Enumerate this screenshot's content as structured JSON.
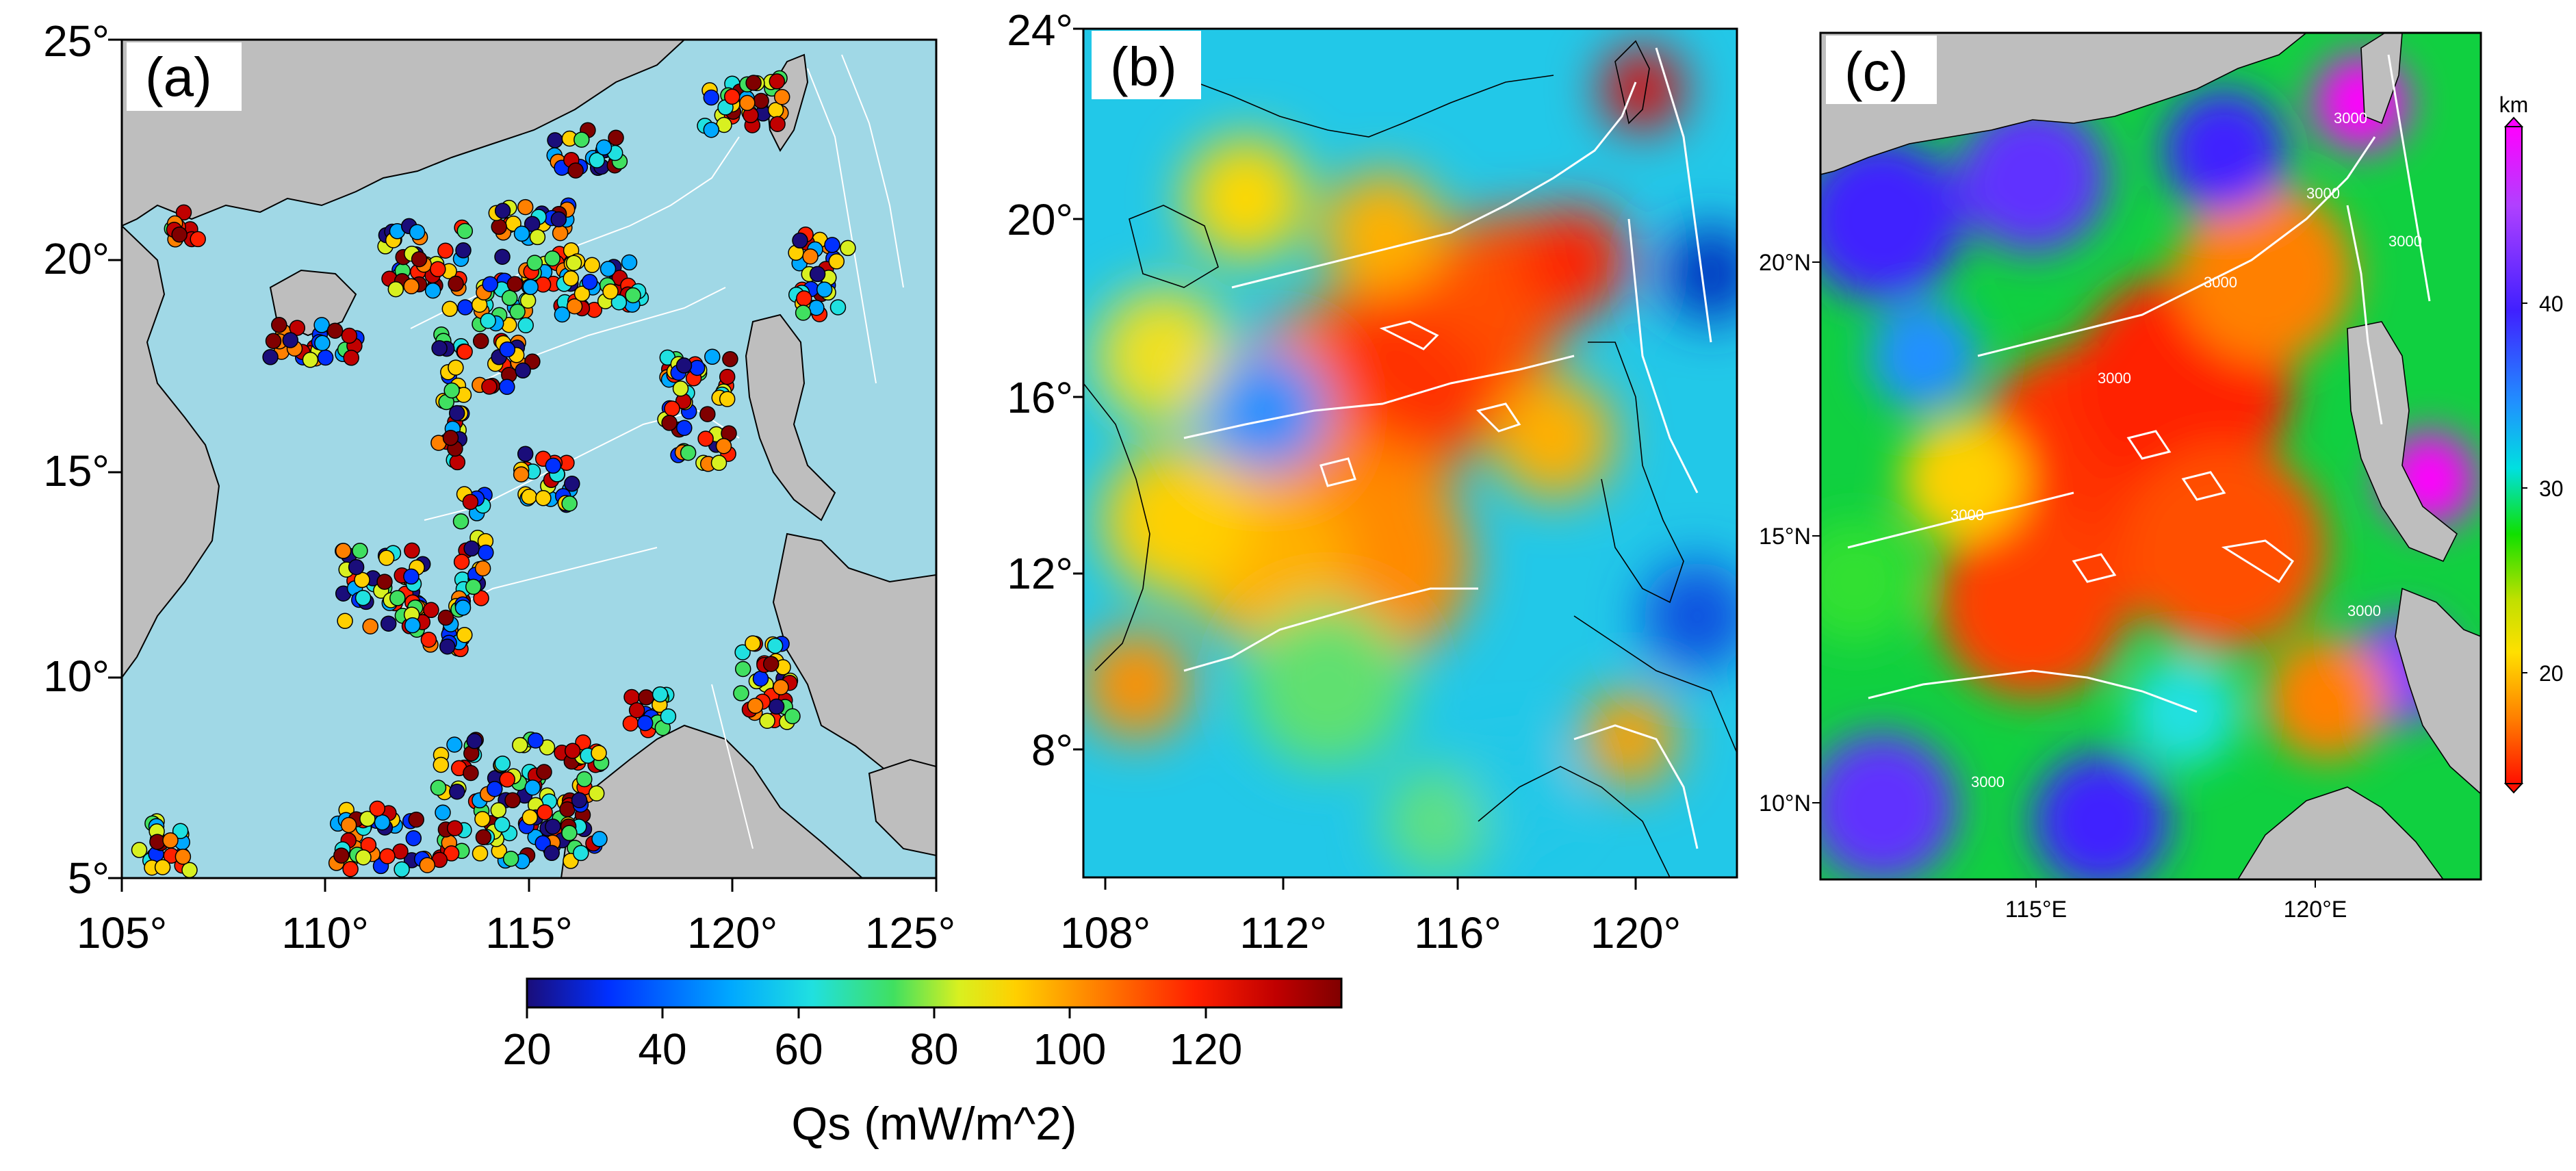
{
  "panels": {
    "a": {
      "label": "(a)",
      "y_ticks": [
        "25°",
        "20°",
        "15°",
        "10°",
        "5°"
      ],
      "x_ticks": [
        "105°",
        "110°",
        "115°",
        "120°",
        "125°"
      ]
    },
    "b": {
      "label": "(b)",
      "y_ticks": [
        "24°",
        "20°",
        "16°",
        "12°",
        "8°"
      ],
      "x_ticks": [
        "108°",
        "112°",
        "116°",
        "120°"
      ]
    },
    "c": {
      "label": "(c)",
      "y_ticks": [
        "20°N",
        "15°N",
        "10°N"
      ],
      "x_ticks": [
        "115°E",
        "120°E"
      ],
      "contour_labels": [
        "3000",
        "3000",
        "3000",
        "3000",
        "3000",
        "3000",
        "3000",
        "3000"
      ]
    }
  },
  "colorbar_qs": {
    "label": "Qs (mW/m^2)",
    "ticks": [
      "20",
      "40",
      "60",
      "80",
      "100",
      "120"
    ],
    "range": [
      20,
      140
    ],
    "colors": [
      "#1a0d7a",
      "#0030ff",
      "#00a8ff",
      "#20e0e0",
      "#40e060",
      "#d8f020",
      "#ffd000",
      "#ff8000",
      "#ff2000",
      "#c00000",
      "#800000"
    ]
  },
  "colorbar_km": {
    "unit": "km",
    "ticks": [
      "40",
      "30",
      "20"
    ],
    "colors": [
      "#ff00ff",
      "#a040ff",
      "#4020ff",
      "#2090ff",
      "#00e0e0",
      "#10e000",
      "#a0e000",
      "#ffe000",
      "#ff8000",
      "#ff2000"
    ]
  },
  "map_colors": {
    "land": "#bebebe",
    "sea": "#a0d8e6",
    "coast": "#000000",
    "bathymetry_contour": "#ffffff"
  }
}
